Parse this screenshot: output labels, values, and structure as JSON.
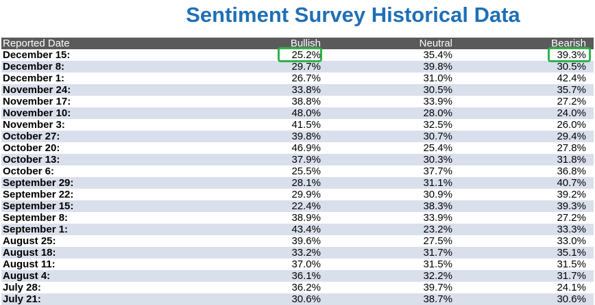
{
  "title": "Sentiment Survey Historical Data",
  "table": {
    "headers": {
      "date": "Reported Date",
      "bullish": "Bullish",
      "neutral": "Neutral",
      "bearish": "Bearish"
    },
    "rows": [
      {
        "date": "December 15:",
        "bullish": "25.2%",
        "neutral": "35.4%",
        "bearish": "39.3%"
      },
      {
        "date": "December 8:",
        "bullish": "29.7%",
        "neutral": "39.8%",
        "bearish": "30.5%"
      },
      {
        "date": "December 1:",
        "bullish": "26.7%",
        "neutral": "31.0%",
        "bearish": "42.4%"
      },
      {
        "date": "November 24:",
        "bullish": "33.8%",
        "neutral": "30.5%",
        "bearish": "35.7%"
      },
      {
        "date": "November 17:",
        "bullish": "38.8%",
        "neutral": "33.9%",
        "bearish": "27.2%"
      },
      {
        "date": "November 10:",
        "bullish": "48.0%",
        "neutral": "28.0%",
        "bearish": "24.0%"
      },
      {
        "date": "November 3:",
        "bullish": "41.5%",
        "neutral": "32.5%",
        "bearish": "26.0%"
      },
      {
        "date": "October 27:",
        "bullish": "39.8%",
        "neutral": "30.7%",
        "bearish": "29.4%"
      },
      {
        "date": "October 20:",
        "bullish": "46.9%",
        "neutral": "25.4%",
        "bearish": "27.8%"
      },
      {
        "date": "October 13:",
        "bullish": "37.9%",
        "neutral": "30.3%",
        "bearish": "31.8%"
      },
      {
        "date": "October 6:",
        "bullish": "25.5%",
        "neutral": "37.7%",
        "bearish": "36.8%"
      },
      {
        "date": "September 29:",
        "bullish": "28.1%",
        "neutral": "31.1%",
        "bearish": "40.7%"
      },
      {
        "date": "September 22:",
        "bullish": "29.9%",
        "neutral": "30.9%",
        "bearish": "39.2%"
      },
      {
        "date": "September 15:",
        "bullish": "22.4%",
        "neutral": "38.3%",
        "bearish": "39.3%"
      },
      {
        "date": "September 8:",
        "bullish": "38.9%",
        "neutral": "33.9%",
        "bearish": "27.2%"
      },
      {
        "date": "September 1:",
        "bullish": "43.4%",
        "neutral": "23.2%",
        "bearish": "33.3%"
      },
      {
        "date": "August 25:",
        "bullish": "39.6%",
        "neutral": "27.5%",
        "bearish": "33.0%"
      },
      {
        "date": "August 18:",
        "bullish": "33.2%",
        "neutral": "31.7%",
        "bearish": "35.1%"
      },
      {
        "date": "August 11:",
        "bullish": "37.0%",
        "neutral": "31.5%",
        "bearish": "31.5%"
      },
      {
        "date": "August 4:",
        "bullish": "36.1%",
        "neutral": "32.2%",
        "bearish": "31.7%"
      },
      {
        "date": "July 28:",
        "bullish": "36.2%",
        "neutral": "39.7%",
        "bearish": "24.1%"
      },
      {
        "date": "July 21:",
        "bullish": "30.6%",
        "neutral": "38.7%",
        "bearish": "30.6%"
      }
    ]
  },
  "colors": {
    "title": "#1f6fb6",
    "header_bg": "#5a5a5a",
    "row_stripe": "#d9dfeb",
    "highlight": "#2db34a"
  }
}
